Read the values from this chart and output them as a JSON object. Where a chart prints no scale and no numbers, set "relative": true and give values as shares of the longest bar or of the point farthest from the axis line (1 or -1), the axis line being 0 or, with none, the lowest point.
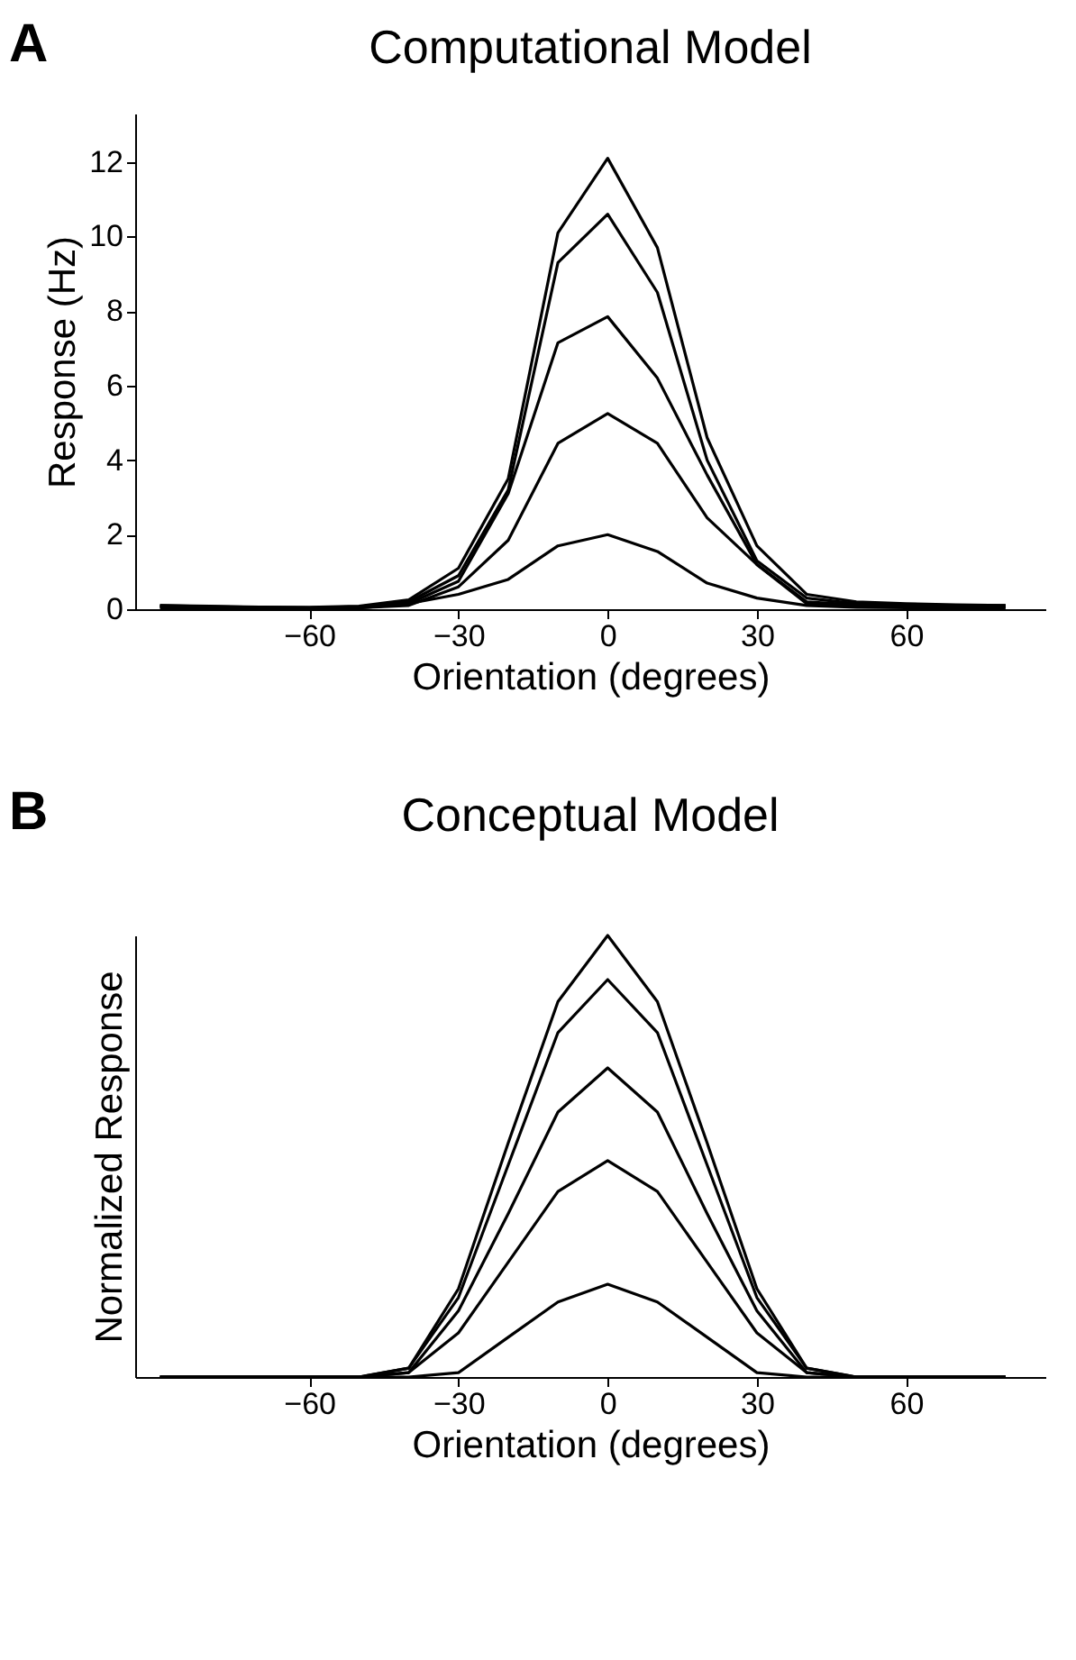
{
  "chart_data": [
    {
      "type": "line",
      "title": "Computational Model",
      "annotations": [
        "A"
      ],
      "xlabel": "Orientation (degrees)",
      "ylabel": "Response (Hz)",
      "x": [
        -90,
        -80,
        -70,
        -60,
        -50,
        -40,
        -30,
        -20,
        -10,
        0,
        10,
        20,
        30,
        40,
        50,
        60,
        70,
        80
      ],
      "xlim": [
        -95,
        88
      ],
      "xticks": [
        -60,
        -30,
        0,
        30,
        60
      ],
      "ylim": [
        0,
        13.3
      ],
      "yticks": [
        0,
        2,
        4,
        6,
        8,
        10,
        12
      ],
      "grid": false,
      "legend": false,
      "marker": "none",
      "line_style": "solid",
      "series": [
        {
          "color": "#000000",
          "values": [
            0.1,
            0.08,
            0.06,
            0.05,
            0.08,
            0.25,
            1.1,
            3.5,
            10.1,
            12.1,
            9.7,
            4.6,
            1.7,
            0.4,
            0.2,
            0.15,
            0.12,
            0.1
          ]
        },
        {
          "color": "#000000",
          "values": [
            0.1,
            0.07,
            0.05,
            0.04,
            0.07,
            0.2,
            0.9,
            3.2,
            9.3,
            10.6,
            8.5,
            4.0,
            1.3,
            0.3,
            0.15,
            0.12,
            0.1,
            0.1
          ]
        },
        {
          "color": "#000000",
          "values": [
            0.08,
            0.06,
            0.04,
            0.03,
            0.06,
            0.15,
            0.75,
            3.1,
            7.15,
            7.85,
            6.2,
            3.6,
            1.2,
            0.2,
            0.12,
            0.1,
            0.08,
            0.08
          ]
        },
        {
          "color": "#000000",
          "values": [
            0.06,
            0.05,
            0.03,
            0.02,
            0.04,
            0.1,
            0.6,
            1.85,
            4.45,
            5.25,
            4.45,
            2.45,
            1.2,
            0.15,
            0.1,
            0.08,
            0.06,
            0.06
          ]
        },
        {
          "color": "#000000",
          "values": [
            0.03,
            0.02,
            0.02,
            0.01,
            0.03,
            0.15,
            0.4,
            0.8,
            1.7,
            2.0,
            1.55,
            0.7,
            0.3,
            0.1,
            0.05,
            0.04,
            0.03,
            0.03
          ]
        }
      ]
    },
    {
      "type": "line",
      "title": "Conceptual Model",
      "annotations": [
        "B"
      ],
      "xlabel": "Orientation (degrees)",
      "ylabel": "Normalized Response",
      "relative": true,
      "x": [
        -90,
        -80,
        -70,
        -60,
        -50,
        -40,
        -30,
        -20,
        -10,
        0,
        10,
        20,
        30,
        40,
        50,
        60,
        70,
        80
      ],
      "xlim": [
        -95,
        88
      ],
      "xticks": [
        -60,
        -30,
        0,
        30,
        60
      ],
      "grid": false,
      "legend": false,
      "marker": "none",
      "line_style": "solid",
      "series": [
        {
          "color": "#000000",
          "values": [
            0,
            0,
            0,
            0,
            0,
            0.02,
            0.2,
            0.53,
            0.85,
            1,
            0.85,
            0.53,
            0.2,
            0.02,
            0,
            0,
            0,
            0
          ]
        },
        {
          "color": "#000000",
          "values": [
            0,
            0,
            0,
            0,
            0,
            0.02,
            0.18,
            0.48,
            0.78,
            0.9,
            0.78,
            0.48,
            0.18,
            0.02,
            0,
            0,
            0,
            0
          ]
        },
        {
          "color": "#000000",
          "values": [
            0,
            0,
            0,
            0,
            0,
            0.01,
            0.15,
            0.37,
            0.6,
            0.7,
            0.6,
            0.37,
            0.15,
            0.01,
            0,
            0,
            0,
            0
          ]
        },
        {
          "color": "#000000",
          "values": [
            0,
            0,
            0,
            0,
            0,
            0.01,
            0.1,
            0.26,
            0.42,
            0.49,
            0.42,
            0.26,
            0.1,
            0.01,
            0,
            0,
            0,
            0
          ]
        },
        {
          "color": "#000000",
          "values": [
            0,
            0,
            0,
            0,
            0,
            0,
            0.01,
            0.09,
            0.17,
            0.21,
            0.17,
            0.09,
            0.01,
            0,
            0,
            0,
            0,
            0
          ]
        }
      ]
    }
  ]
}
